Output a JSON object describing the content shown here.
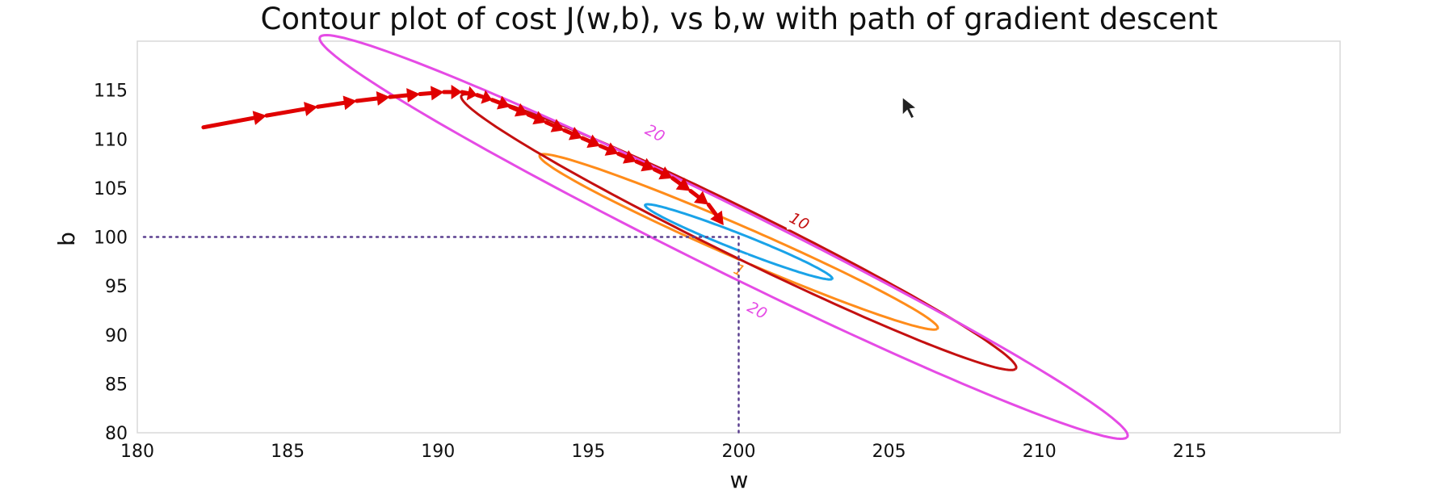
{
  "chart_data": {
    "type": "contour",
    "title": "Contour plot of cost J(w,b), vs b,w with path of gradient descent",
    "xlabel": "w",
    "ylabel": "b",
    "xlim": [
      180,
      220
    ],
    "ylim": [
      80,
      120
    ],
    "xticks": [
      "180",
      "185",
      "190",
      "195",
      "200",
      "205",
      "210",
      "215"
    ],
    "yticks": [
      "80",
      "85",
      "90",
      "95",
      "100",
      "105",
      "110",
      "115"
    ],
    "grid": false,
    "contours": [
      {
        "level_label": "1",
        "color": "#1aa3e8",
        "center": [
          200.0,
          99.5
        ],
        "semi_major_w": 3.1,
        "semi_major_b": -3.8,
        "semi_minor_w": 0.28,
        "semi_minor_b": 0.55,
        "label_at": [
          199.9,
          97.1
        ]
      },
      {
        "level_label": "1",
        "color": "#ff8c1a",
        "center": [
          200.0,
          99.5
        ],
        "semi_major_w": 6.6,
        "semi_major_b": -8.9,
        "semi_minor_w": 0.55,
        "semi_minor_b": 1.05,
        "label_at": [
          200.0,
          96.5
        ]
      },
      {
        "level_label": "10",
        "color": "#c41010",
        "center": [
          200.0,
          100.5
        ],
        "semi_major_w": 9.2,
        "semi_major_b": -14.0,
        "semi_minor_w": 0.75,
        "semi_minor_b": 1.6,
        "label_at": [
          202.0,
          101.5
        ]
      },
      {
        "level_label": "20",
        "color": "#e54be5",
        "center": [
          199.5,
          100.0
        ],
        "semi_major_w": 13.4,
        "semi_major_b": -20.5,
        "semi_minor_w": 1.0,
        "semi_minor_b": 2.2,
        "label_at": [
          197.2,
          110.5
        ],
        "label2_at": [
          200.6,
          92.4
        ]
      }
    ],
    "gd_path": {
      "color": "#e00000",
      "points": [
        [
          182.2,
          111.2
        ],
        [
          184.3,
          112.4
        ],
        [
          186.0,
          113.3
        ],
        [
          187.3,
          113.9
        ],
        [
          188.4,
          114.3
        ],
        [
          189.4,
          114.6
        ],
        [
          190.2,
          114.8
        ],
        [
          190.8,
          114.8
        ],
        [
          191.3,
          114.5
        ],
        [
          191.8,
          114.0
        ],
        [
          192.4,
          113.3
        ],
        [
          193.0,
          112.5
        ],
        [
          193.6,
          111.7
        ],
        [
          194.2,
          110.9
        ],
        [
          194.8,
          110.1
        ],
        [
          195.4,
          109.3
        ],
        [
          196.0,
          108.5
        ],
        [
          196.6,
          107.7
        ],
        [
          197.2,
          106.9
        ],
        [
          197.8,
          106.0
        ],
        [
          198.4,
          104.7
        ],
        [
          199.0,
          103.3
        ],
        [
          199.5,
          101.2
        ]
      ]
    },
    "reference_point": {
      "w": 200,
      "b": 100,
      "line_color": "#5a3f8f"
    }
  }
}
